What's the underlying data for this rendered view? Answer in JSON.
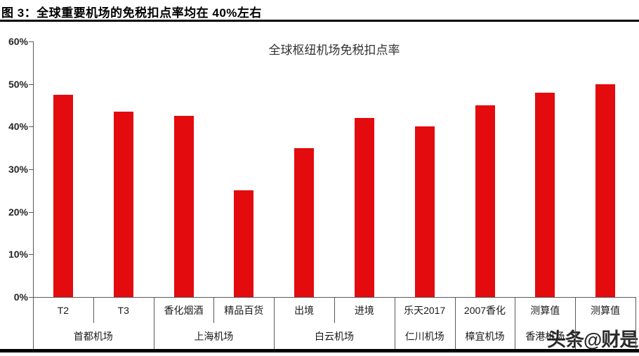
{
  "figure": {
    "header_title": "图 3：全球重要机场的免税扣点率均在 40%左右",
    "watermark": "头条@财是"
  },
  "chart_data": {
    "type": "bar",
    "title": "全球枢纽机场免税扣点率",
    "categories": [
      "T2",
      "T3",
      "香化烟酒",
      "精品百货",
      "出境",
      "进境",
      "乐天2017",
      "2007香化",
      "测算值",
      "测算值"
    ],
    "values": [
      47.5,
      43.5,
      42.5,
      25,
      35,
      42,
      40,
      45,
      48,
      50
    ],
    "groups": [
      {
        "label": "首都机场",
        "span": 2
      },
      {
        "label": "上海机场",
        "span": 2
      },
      {
        "label": "白云机场",
        "span": 2
      },
      {
        "label": "仁川机场",
        "span": 1
      },
      {
        "label": "樟宜机场",
        "span": 1
      },
      {
        "label": "香港机场",
        "span": 1
      },
      {
        "label": "",
        "span": 1
      }
    ],
    "ylim": [
      0,
      60
    ],
    "ytick_step": 10,
    "ytick_labels": [
      "0%",
      "10%",
      "20%",
      "30%",
      "40%",
      "50%",
      "60%"
    ],
    "bar_color": "#e30b0e",
    "axis_color": "#595959",
    "grid": false,
    "legend": false,
    "unit": "percent"
  }
}
